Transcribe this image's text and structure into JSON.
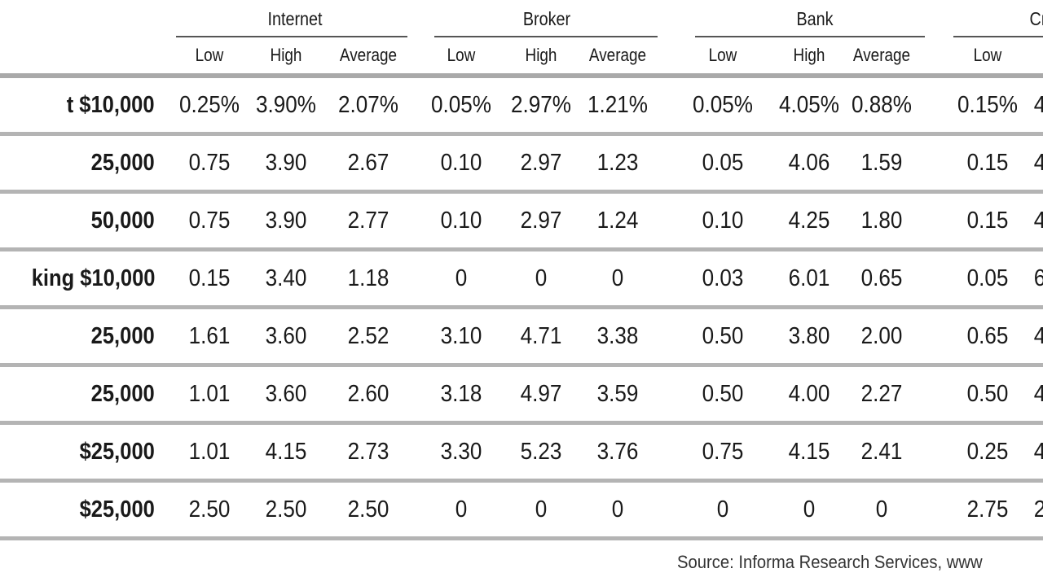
{
  "table": {
    "groups": [
      {
        "name": "Internet",
        "center": 362,
        "rule": [
          216,
          500
        ]
      },
      {
        "name": "Broker",
        "center": 671,
        "rule": [
          533,
          807
        ]
      },
      {
        "name": "Bank",
        "center": 1000,
        "rule": [
          853,
          1135
        ]
      },
      {
        "name": "Cr",
        "center": 1274,
        "rule": [
          1170,
          1280
        ]
      }
    ],
    "subcolumns": [
      {
        "label": "Low",
        "center": 257
      },
      {
        "label": "High",
        "center": 351
      },
      {
        "label": "Average",
        "center": 452
      },
      {
        "label": "Low",
        "center": 566
      },
      {
        "label": "High",
        "center": 664
      },
      {
        "label": "Average",
        "center": 758
      },
      {
        "label": "Low",
        "center": 887
      },
      {
        "label": "High",
        "center": 993
      },
      {
        "label": "Average",
        "center": 1082
      },
      {
        "label": "Low",
        "center": 1212
      },
      {
        "label": "",
        "center": 1276
      }
    ],
    "rows": [
      {
        "label": "t $10,000",
        "values": [
          "0.25%",
          "3.90%",
          "2.07%",
          "0.05%",
          "2.97%",
          "1.21%",
          "0.05%",
          "4.05%",
          "0.88%",
          "0.15%",
          "4"
        ]
      },
      {
        "label": "25,000",
        "values": [
          "0.75",
          "3.90",
          "2.67",
          "0.10",
          "2.97",
          "1.23",
          "0.05",
          "4.06",
          "1.59",
          "0.15",
          "4"
        ]
      },
      {
        "label": "50,000",
        "values": [
          "0.75",
          "3.90",
          "2.77",
          "0.10",
          "2.97",
          "1.24",
          "0.10",
          "4.25",
          "1.80",
          "0.15",
          "4"
        ]
      },
      {
        "label": "king $10,000",
        "values": [
          "0.15",
          "3.40",
          "1.18",
          "0",
          "0",
          "0",
          "0.03",
          "6.01",
          "0.65",
          "0.05",
          "6"
        ]
      },
      {
        "label": "25,000",
        "values": [
          "1.61",
          "3.60",
          "2.52",
          "3.10",
          "4.71",
          "3.38",
          "0.50",
          "3.80",
          "2.00",
          "0.65",
          "4"
        ]
      },
      {
        "label": "25,000",
        "values": [
          "1.01",
          "3.60",
          "2.60",
          "3.18",
          "4.97",
          "3.59",
          "0.50",
          "4.00",
          "2.27",
          "0.50",
          "4"
        ]
      },
      {
        "label": "$25,000",
        "values": [
          "1.01",
          "4.15",
          "2.73",
          "3.30",
          "5.23",
          "3.76",
          "0.75",
          "4.15",
          "2.41",
          "0.25",
          "4"
        ]
      },
      {
        "label": "$25,000",
        "values": [
          "2.50",
          "2.50",
          "2.50",
          "0",
          "0",
          "0",
          "0",
          "0",
          "0",
          "2.75",
          "2"
        ]
      }
    ]
  },
  "footer": {
    "source": "Source: Informa Research Services, www"
  }
}
